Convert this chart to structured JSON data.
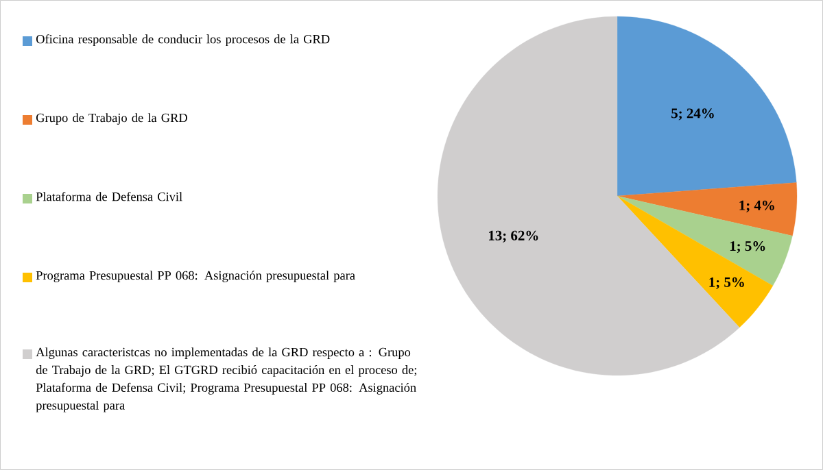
{
  "chart_data": {
    "type": "pie",
    "categories": [
      "Oficina responsable de conducir los procesos de la GRD",
      "Grupo de Trabajo de la GRD",
      "Plataforma de Defensa Civil",
      "Programa Presupuestal PP 068: Asignación presupuestal para",
      "Algunas caracteristcas no implementadas de la GRD respecto a : Grupo de Trabajo de la GRD; El GTGRD recibió capacitación en el proceso de; Plataforma de Defensa Civil;  Programa Presupuestal PP 068: Asignación presupuestal para"
    ],
    "values": [
      5,
      1,
      1,
      1,
      13
    ],
    "colors": [
      "#5b9bd5",
      "#ed7d31",
      "#a9d18e",
      "#ffc000",
      "#d0cece"
    ],
    "value_labels": [
      "5; 24%",
      "1; 4%",
      "1; 5%",
      "1; 5%",
      "13; 62%"
    ],
    "legend": "left"
  }
}
